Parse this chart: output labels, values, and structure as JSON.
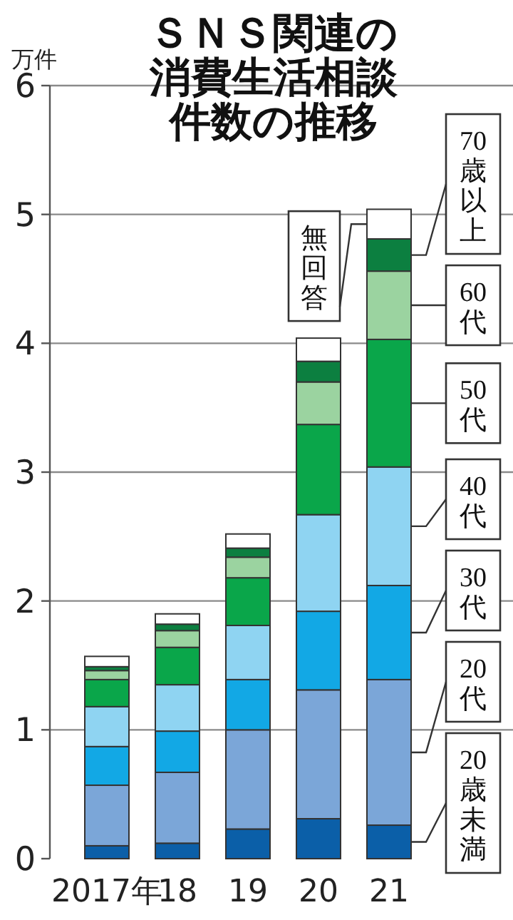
{
  "chart_data": {
    "type": "bar",
    "stacked": true,
    "title": "ＳＮＳ関連の消費生活相談件数の推移",
    "ylabel": "万件",
    "categories": [
      "2017年",
      "18",
      "19",
      "20",
      "21"
    ],
    "series": [
      {
        "name": "20歳未満",
        "color": "#0b5fa8",
        "values": [
          0.1,
          0.12,
          0.23,
          0.31,
          0.26
        ]
      },
      {
        "name": "20代",
        "color": "#7ba6d8",
        "values": [
          0.47,
          0.55,
          0.77,
          1.0,
          1.13
        ]
      },
      {
        "name": "30代",
        "color": "#12a8e5",
        "values": [
          0.3,
          0.32,
          0.39,
          0.61,
          0.73
        ]
      },
      {
        "name": "40代",
        "color": "#8fd4f2",
        "values": [
          0.31,
          0.36,
          0.42,
          0.75,
          0.92
        ]
      },
      {
        "name": "50代",
        "color": "#0aa64a",
        "values": [
          0.21,
          0.29,
          0.37,
          0.7,
          0.99
        ]
      },
      {
        "name": "60代",
        "color": "#9bd3a0",
        "values": [
          0.07,
          0.13,
          0.16,
          0.33,
          0.53
        ]
      },
      {
        "name": "70歳以上",
        "color": "#0c7f40",
        "values": [
          0.03,
          0.05,
          0.07,
          0.16,
          0.25
        ]
      },
      {
        "name": "無回答",
        "color": "#ffffff",
        "values": [
          0.08,
          0.08,
          0.11,
          0.18,
          0.23
        ]
      }
    ],
    "ylim": [
      0,
      6
    ],
    "yticks": [
      0,
      1,
      2,
      3,
      4,
      5,
      6
    ],
    "grid": "y",
    "legend": "right"
  }
}
